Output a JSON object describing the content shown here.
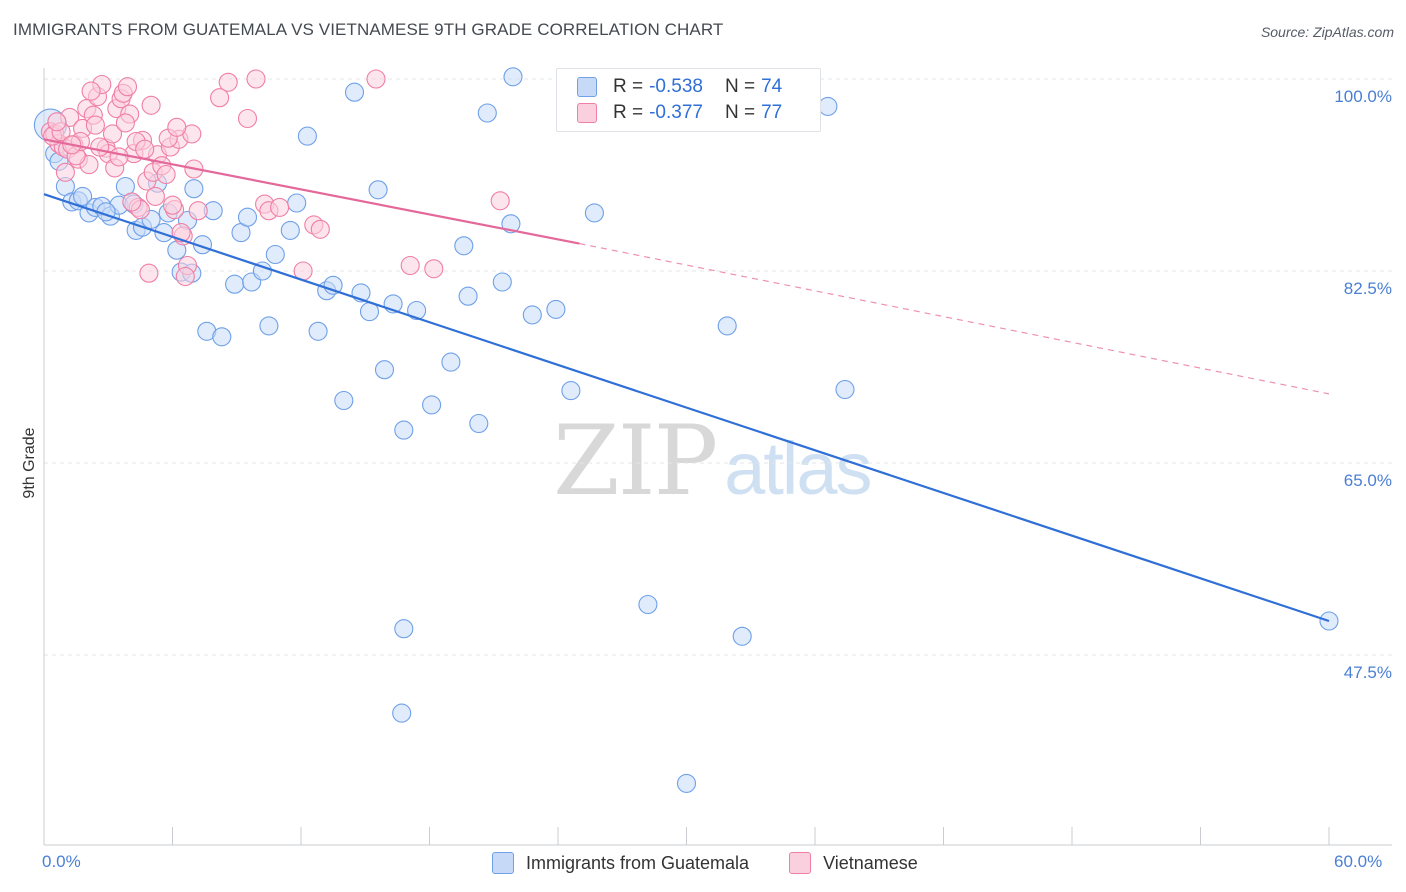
{
  "header": {
    "title": "IMMIGRANTS FROM GUATEMALA VS VIETNAMESE 9TH GRADE CORRELATION CHART",
    "source": "Source: ZipAtlas.com"
  },
  "watermark": {
    "zip": "ZIP",
    "atlas": "atlas"
  },
  "legend": {
    "rows": [
      {
        "r_label": "R =",
        "r_value": "-0.538",
        "n_label": "N =",
        "n_value": "74",
        "color": "#6fa0e8"
      },
      {
        "r_label": "R =",
        "r_value": "-0.377",
        "n_label": "N =",
        "n_value": "77",
        "color": "#ef7fa5"
      }
    ]
  },
  "bottom_legend": [
    {
      "label": "Immigrants from Guatemala",
      "color": "#6fa0e8"
    },
    {
      "label": "Vietnamese",
      "color": "#ef7fa5"
    }
  ],
  "chart_data": {
    "type": "scatter",
    "title": "IMMIGRANTS FROM GUATEMALA VS VIETNAMESE 9TH GRADE CORRELATION CHART",
    "xlabel": "",
    "ylabel": "9th Grade",
    "xlim": [
      0,
      60
    ],
    "ylim": [
      33.5,
      101.5
    ],
    "x_tick_labels": [
      "0.0%",
      "60.0%"
    ],
    "y_ticks": [
      100.0,
      82.5,
      65.0,
      47.5
    ],
    "y_tick_labels": [
      "100.0%",
      "82.5%",
      "65.0%",
      "47.5%"
    ],
    "grid": true,
    "legend_position": "top-center",
    "series": [
      {
        "name": "Immigrants from Guatemala",
        "color": "#6fa0e8",
        "trend": {
          "x0": 0,
          "y0": 89.5,
          "x1": 60,
          "y1": 50.6,
          "dashed_from": null
        },
        "points": [
          [
            0.3,
            95.8
          ],
          [
            0.5,
            93.2
          ],
          [
            0.7,
            92.5
          ],
          [
            1.0,
            90.2
          ],
          [
            1.3,
            88.8
          ],
          [
            1.6,
            88.9
          ],
          [
            1.8,
            89.3
          ],
          [
            2.1,
            87.8
          ],
          [
            2.4,
            88.3
          ],
          [
            2.7,
            88.4
          ],
          [
            3.1,
            87.5
          ],
          [
            3.5,
            88.5
          ],
          [
            3.8,
            90.2
          ],
          [
            4.3,
            86.2
          ],
          [
            4.6,
            86.5
          ],
          [
            5.0,
            87.2
          ],
          [
            5.3,
            90.5
          ],
          [
            5.8,
            87.8
          ],
          [
            6.2,
            84.4
          ],
          [
            6.7,
            87.1
          ],
          [
            6.4,
            82.4
          ],
          [
            6.9,
            82.3
          ],
          [
            7.4,
            84.9
          ],
          [
            7.9,
            88.0
          ],
          [
            7.6,
            77.0
          ],
          [
            8.3,
            76.5
          ],
          [
            8.9,
            81.3
          ],
          [
            9.2,
            86.0
          ],
          [
            9.7,
            81.5
          ],
          [
            9.5,
            87.4
          ],
          [
            10.2,
            82.5
          ],
          [
            10.8,
            84.0
          ],
          [
            10.5,
            77.5
          ],
          [
            11.5,
            86.2
          ],
          [
            11.8,
            88.7
          ],
          [
            12.3,
            94.8
          ],
          [
            12.8,
            77.0
          ],
          [
            13.2,
            80.7
          ],
          [
            13.5,
            81.2
          ],
          [
            14.0,
            70.7
          ],
          [
            14.5,
            98.8
          ],
          [
            14.8,
            80.5
          ],
          [
            15.2,
            78.8
          ],
          [
            15.6,
            89.9
          ],
          [
            15.9,
            73.5
          ],
          [
            16.3,
            79.5
          ],
          [
            16.8,
            68.0
          ],
          [
            17.4,
            78.9
          ],
          [
            18.1,
            70.3
          ],
          [
            19.0,
            74.2
          ],
          [
            19.6,
            84.8
          ],
          [
            19.8,
            80.2
          ],
          [
            20.3,
            68.6
          ],
          [
            20.7,
            96.9
          ],
          [
            21.4,
            81.5
          ],
          [
            21.8,
            86.8
          ],
          [
            21.9,
            100.2
          ],
          [
            22.8,
            78.5
          ],
          [
            23.9,
            79.0
          ],
          [
            24.6,
            71.6
          ],
          [
            25.7,
            87.8
          ],
          [
            28.2,
            52.1
          ],
          [
            31.9,
            77.5
          ],
          [
            32.6,
            49.2
          ],
          [
            36.6,
            97.5
          ],
          [
            37.4,
            71.7
          ],
          [
            16.8,
            49.9
          ],
          [
            16.7,
            42.2
          ],
          [
            30.0,
            35.8
          ],
          [
            60.0,
            50.6
          ],
          [
            7.0,
            90.0
          ],
          [
            4.2,
            88.6
          ],
          [
            5.6,
            86.0
          ],
          [
            2.9,
            87.9
          ]
        ]
      },
      {
        "name": "Vietnamese",
        "color": "#ef7fa5",
        "trend": {
          "x0": 0,
          "y0": 94.5,
          "x1": 25,
          "y1": 85.0,
          "dashed_from": 25,
          "x_end": 60,
          "y_end": 71.3
        },
        "points": [
          [
            0.3,
            95.2
          ],
          [
            0.5,
            95.0
          ],
          [
            0.7,
            94.1
          ],
          [
            0.9,
            93.8
          ],
          [
            1.1,
            93.6
          ],
          [
            1.2,
            96.5
          ],
          [
            1.4,
            94.0
          ],
          [
            1.6,
            92.7
          ],
          [
            1.8,
            95.5
          ],
          [
            2.0,
            97.3
          ],
          [
            2.1,
            92.2
          ],
          [
            2.3,
            96.7
          ],
          [
            2.5,
            98.4
          ],
          [
            2.7,
            99.5
          ],
          [
            2.9,
            93.7
          ],
          [
            3.0,
            93.2
          ],
          [
            3.2,
            95.0
          ],
          [
            3.4,
            97.3
          ],
          [
            3.6,
            98.2
          ],
          [
            3.7,
            98.7
          ],
          [
            3.9,
            99.3
          ],
          [
            4.0,
            96.8
          ],
          [
            4.2,
            93.2
          ],
          [
            4.4,
            88.3
          ],
          [
            4.5,
            88.1
          ],
          [
            4.6,
            94.4
          ],
          [
            4.8,
            90.7
          ],
          [
            5.0,
            97.6
          ],
          [
            5.1,
            91.5
          ],
          [
            5.3,
            93.1
          ],
          [
            5.5,
            92.1
          ],
          [
            5.7,
            91.3
          ],
          [
            5.9,
            93.8
          ],
          [
            6.1,
            88.1
          ],
          [
            6.3,
            94.5
          ],
          [
            6.5,
            85.7
          ],
          [
            6.7,
            83.0
          ],
          [
            6.9,
            95.0
          ],
          [
            7.2,
            88.0
          ],
          [
            8.2,
            98.3
          ],
          [
            8.6,
            99.7
          ],
          [
            9.5,
            96.4
          ],
          [
            9.9,
            100.0
          ],
          [
            10.3,
            88.6
          ],
          [
            10.5,
            88.0
          ],
          [
            12.1,
            82.5
          ],
          [
            12.6,
            86.7
          ],
          [
            12.9,
            86.3
          ],
          [
            15.5,
            100.0
          ],
          [
            17.1,
            83.0
          ],
          [
            18.2,
            82.7
          ],
          [
            21.3,
            88.9
          ],
          [
            1.0,
            91.5
          ],
          [
            1.5,
            93.0
          ],
          [
            2.4,
            95.8
          ],
          [
            3.3,
            91.9
          ],
          [
            4.3,
            94.3
          ],
          [
            4.9,
            82.3
          ],
          [
            5.8,
            94.6
          ],
          [
            6.2,
            95.6
          ],
          [
            7.0,
            91.8
          ],
          [
            0.4,
            94.8
          ],
          [
            0.8,
            95.2
          ],
          [
            1.7,
            94.3
          ],
          [
            2.6,
            93.8
          ],
          [
            3.5,
            92.9
          ],
          [
            4.1,
            88.8
          ],
          [
            5.2,
            89.3
          ],
          [
            6.0,
            88.5
          ],
          [
            6.4,
            86.0
          ],
          [
            6.6,
            82.0
          ],
          [
            11.0,
            88.3
          ],
          [
            2.2,
            98.9
          ],
          [
            0.6,
            96.1
          ],
          [
            1.3,
            94.0
          ],
          [
            3.8,
            96.0
          ],
          [
            4.7,
            93.6
          ]
        ]
      }
    ]
  }
}
